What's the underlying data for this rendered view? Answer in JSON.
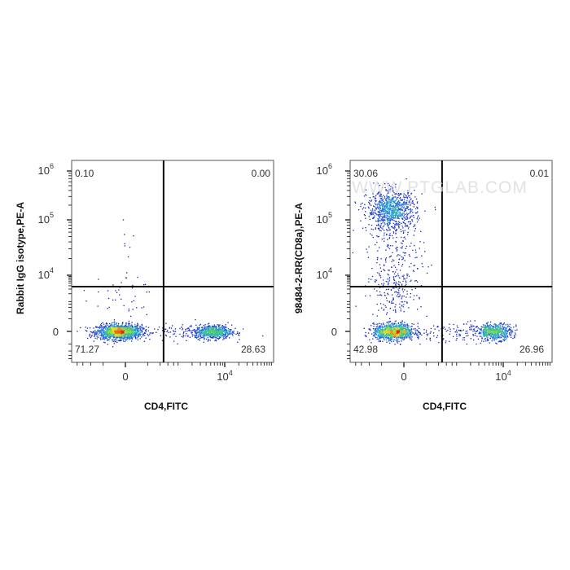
{
  "chart_data": [
    {
      "type": "scatter",
      "subtype": "flow-cytometry-density-dot-plot",
      "xlabel": "CD4,FITC",
      "ylabel": "Rabbit IgG isotype,PE-A",
      "x_ticks": [
        {
          "value": 0,
          "label": "0"
        },
        {
          "value": 10000,
          "label": "10",
          "exp": "4"
        }
      ],
      "y_ticks": [
        {
          "value": 0,
          "label": "0"
        },
        {
          "value": 10000,
          "label": "10",
          "exp": "4"
        },
        {
          "value": 100000,
          "label": "10",
          "exp": "5"
        },
        {
          "value": 1000000,
          "label": "10",
          "exp": "6"
        }
      ],
      "gate": {
        "x": 480,
        "y": 3700
      },
      "quadrants": {
        "upper_left": "0.10",
        "upper_right": "0.00",
        "lower_left": "71.27",
        "lower_right": "28.63"
      },
      "populations": [
        {
          "x": -50,
          "y": 0,
          "count": 1500,
          "sd_x": 0.55,
          "sd_y": 0.32
        },
        {
          "x": 5600,
          "y": 0,
          "count": 650,
          "sd_x": 0.45,
          "sd_y": 0.3
        },
        {
          "x": 1200,
          "y": 0,
          "count": 120,
          "sd_x": 1.2,
          "sd_y": 0.35
        },
        {
          "x": -60,
          "y": 1500,
          "count": 40,
          "sd_x": 0.9,
          "sd_y": 0.9
        },
        {
          "x": 0,
          "y": 20000,
          "count": 8,
          "sd_x": 0.3,
          "sd_y": 0.9
        }
      ],
      "watermark": ""
    },
    {
      "type": "scatter",
      "subtype": "flow-cytometry-density-dot-plot",
      "xlabel": "CD4,FITC",
      "ylabel": "98484-2-RR(CD8a),PE-A",
      "x_ticks": [
        {
          "value": 0,
          "label": "0"
        },
        {
          "value": 10000,
          "label": "10",
          "exp": "4"
        }
      ],
      "y_ticks": [
        {
          "value": 0,
          "label": "0"
        },
        {
          "value": 10000,
          "label": "10",
          "exp": "4"
        },
        {
          "value": 100000,
          "label": "10",
          "exp": "5"
        },
        {
          "value": 1000000,
          "label": "10",
          "exp": "6"
        }
      ],
      "gate": {
        "x": 480,
        "y": 3700
      },
      "quadrants": {
        "upper_left": "30.06",
        "upper_right": "0.01",
        "lower_left": "42.98",
        "lower_right": "26.96"
      },
      "populations": [
        {
          "x": -80,
          "y": 0,
          "count": 1100,
          "sd_x": 0.5,
          "sd_y": 0.35
        },
        {
          "x": 6500,
          "y": 0,
          "count": 550,
          "sd_x": 0.42,
          "sd_y": 0.35
        },
        {
          "x": 1000,
          "y": 0,
          "count": 150,
          "sd_x": 1.2,
          "sd_y": 0.45
        },
        {
          "x": -100,
          "y": 160000,
          "count": 900,
          "sd_x": 0.6,
          "sd_y": 0.45
        },
        {
          "x": -60,
          "y": 20000,
          "count": 250,
          "sd_x": 0.7,
          "sd_y": 1.0
        },
        {
          "x": -80,
          "y": 1500,
          "count": 120,
          "sd_x": 0.6,
          "sd_y": 0.8
        }
      ],
      "watermark": "WWW.PTGLAB.COM"
    }
  ]
}
